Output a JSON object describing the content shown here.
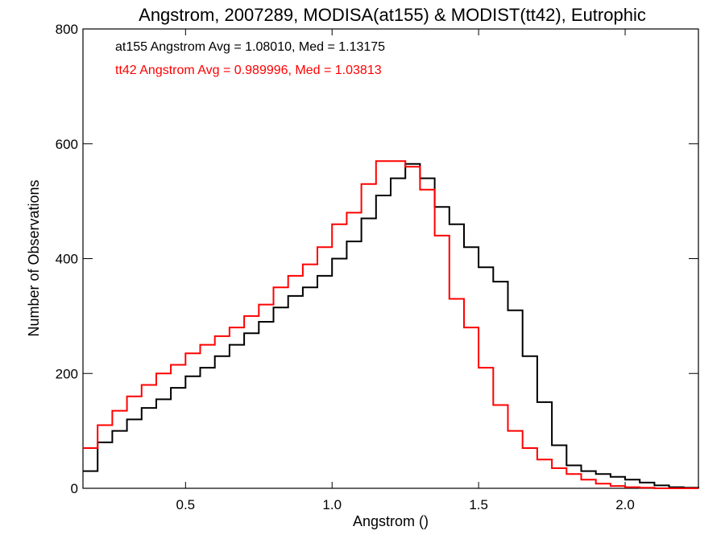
{
  "chart_data": {
    "type": "line",
    "title": "Angstrom, 2007289, MODISA(at155) & MODIST(tt42), Eutrophic",
    "xlabel": "Angstrom ()",
    "ylabel": "Number of Observations",
    "xlim": [
      0.15,
      2.25
    ],
    "ylim": [
      0,
      800
    ],
    "x_ticks": [
      0.5,
      1.0,
      1.5,
      2.0
    ],
    "x_tick_labels": [
      "0.5",
      "1.0",
      "1.5",
      "2.0"
    ],
    "y_ticks": [
      0,
      200,
      400,
      600,
      800
    ],
    "y_tick_labels": [
      "0",
      "200",
      "400",
      "600",
      "800"
    ],
    "annotations": [
      {
        "text": "at155 Angstrom Avg = 1.08010, Med = 1.13175",
        "color": "#000000"
      },
      {
        "text": "tt42 Angstrom Avg = 0.989996, Med = 1.03813",
        "color": "#ff0000"
      }
    ],
    "series": [
      {
        "color": "#000000",
        "x": [
          0.15,
          0.2,
          0.25,
          0.3,
          0.35,
          0.4,
          0.45,
          0.5,
          0.55,
          0.6,
          0.65,
          0.7,
          0.75,
          0.8,
          0.85,
          0.9,
          0.95,
          1.0,
          1.05,
          1.1,
          1.15,
          1.2,
          1.25,
          1.3,
          1.35,
          1.4,
          1.45,
          1.5,
          1.55,
          1.6,
          1.65,
          1.7,
          1.75,
          1.8,
          1.85,
          1.9,
          1.95,
          2.0,
          2.05,
          2.1,
          2.15,
          2.2,
          2.25
        ],
        "y": [
          30,
          80,
          100,
          120,
          140,
          155,
          175,
          195,
          210,
          230,
          250,
          270,
          290,
          315,
          335,
          350,
          370,
          400,
          430,
          470,
          510,
          540,
          565,
          540,
          490,
          460,
          420,
          385,
          360,
          310,
          230,
          150,
          75,
          40,
          30,
          25,
          20,
          15,
          10,
          5,
          2,
          1,
          0
        ]
      },
      {
        "color": "#ff0000",
        "x": [
          0.15,
          0.2,
          0.25,
          0.3,
          0.35,
          0.4,
          0.45,
          0.5,
          0.55,
          0.6,
          0.65,
          0.7,
          0.75,
          0.8,
          0.85,
          0.9,
          0.95,
          1.0,
          1.05,
          1.1,
          1.15,
          1.2,
          1.25,
          1.3,
          1.35,
          1.4,
          1.45,
          1.5,
          1.55,
          1.6,
          1.65,
          1.7,
          1.75,
          1.8,
          1.85,
          1.9,
          1.95,
          2.0,
          2.05,
          2.1,
          2.15,
          2.2,
          2.25
        ],
        "y": [
          70,
          110,
          135,
          160,
          180,
          200,
          215,
          235,
          250,
          265,
          280,
          300,
          320,
          350,
          370,
          390,
          420,
          460,
          480,
          530,
          570,
          570,
          560,
          520,
          440,
          330,
          280,
          210,
          145,
          100,
          70,
          50,
          35,
          25,
          15,
          8,
          4,
          2,
          1,
          0,
          0,
          0,
          0
        ]
      }
    ]
  }
}
